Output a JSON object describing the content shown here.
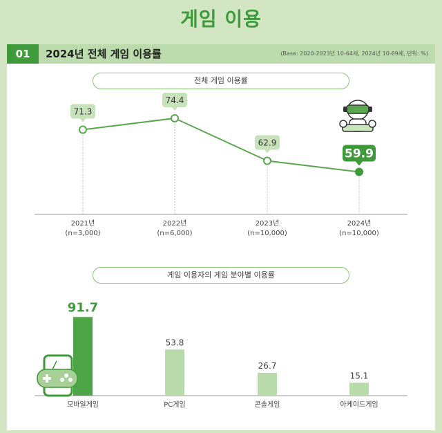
{
  "page_title": "게임 이용",
  "section": {
    "number": "01",
    "title": "2024년 전체 게임 이용률",
    "base_note": "(Base: 2020-2023년 10-64세, 2024년 10-69세, 단위: %)"
  },
  "colors": {
    "accent": "#3e9a3a",
    "light": "#a6d096",
    "background": "#d2e6c4"
  },
  "icons": [
    "vr-gamer-icon",
    "mobile-gamepad-icon"
  ],
  "chart_data": [
    {
      "type": "line",
      "title": "전체 게임 이용률",
      "categories": [
        "2021년",
        "2022년",
        "2023년",
        "2024년"
      ],
      "sublabels": [
        "(n=3,000)",
        "(n=6,000)",
        "(n=10,000)",
        "(n=10,000)"
      ],
      "values": [
        71.3,
        74.4,
        62.9,
        59.9
      ],
      "highlight_index": 3,
      "unit": "%"
    },
    {
      "type": "bar",
      "title": "게임 이용자의 게임 분야별 이용률",
      "categories": [
        "모바일게임",
        "PC게임",
        "콘솔게임",
        "아케이드게임"
      ],
      "values": [
        91.7,
        53.8,
        26.7,
        15.1
      ],
      "highlight_index": 0,
      "unit": "%"
    }
  ]
}
